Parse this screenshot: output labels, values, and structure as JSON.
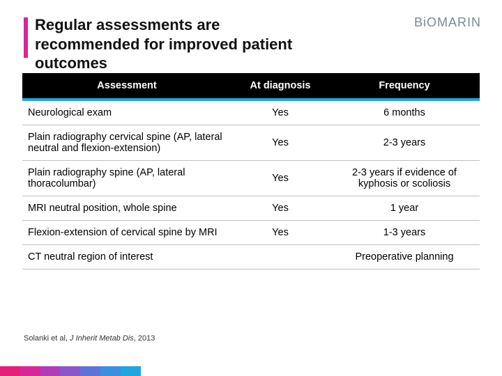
{
  "title": "Regular assessments are recommended for improved patient outcomes",
  "logo_text": "BiOMARIN",
  "table": {
    "columns": [
      "Assessment",
      "At diagnosis",
      "Frequency"
    ],
    "header_bg": "#000000",
    "header_text_color": "#ffffff",
    "accent_row_color": "#1da6df",
    "border_color": "#bfbfbf",
    "rows": [
      {
        "assessment": "Neurological exam",
        "at_diagnosis": "Yes",
        "frequency": "6 months"
      },
      {
        "assessment": "Plain radiography cervical spine (AP, lateral neutral and flexion-extension)",
        "at_diagnosis": "Yes",
        "frequency": "2-3 years"
      },
      {
        "assessment": "Plain radiography spine (AP, lateral thoracolumbar)",
        "at_diagnosis": "Yes",
        "frequency": "2-3 years if evidence of kyphosis or scoliosis"
      },
      {
        "assessment": "MRI neutral position, whole spine",
        "at_diagnosis": "Yes",
        "frequency": "1 year"
      },
      {
        "assessment": "Flexion-extension of cervical spine by MRI",
        "at_diagnosis": "Yes",
        "frequency": "1-3 years"
      },
      {
        "assessment": "CT neutral region of interest",
        "at_diagnosis": "",
        "frequency": "Preoperative planning"
      }
    ]
  },
  "citation": {
    "authors": "Solanki et al,",
    "journal": "J Inherit Metab Dis",
    "year": ", 2013"
  },
  "accent_color": "#d9259a",
  "footer_gradient": [
    {
      "color": "#e61e7a",
      "flex": 1
    },
    {
      "color": "#d9259a",
      "flex": 1
    },
    {
      "color": "#b13db6",
      "flex": 1
    },
    {
      "color": "#8a56c9",
      "flex": 1
    },
    {
      "color": "#5f73d7",
      "flex": 1
    },
    {
      "color": "#3c8fde",
      "flex": 1
    },
    {
      "color": "#1da6df",
      "flex": 1
    },
    {
      "color": "#ffffff",
      "flex": 18
    }
  ]
}
